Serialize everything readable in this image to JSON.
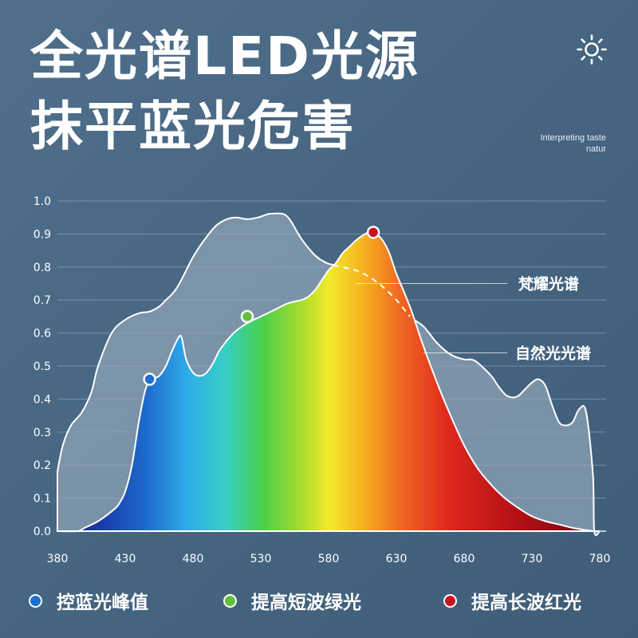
{
  "header": {
    "title_line1": "全光谱LED光源",
    "title_line2": "抹平蓝光危害",
    "tagline": "Interpreting taste natur"
  },
  "icons": {
    "top_right": "sun-icon"
  },
  "colors": {
    "background": "#4a6a86",
    "natural_fill": "#8ea3b6",
    "blue_dot": "#1d6fd1",
    "green_dot": "#62bf3a",
    "red_dot": "#c8141c"
  },
  "legend": {
    "items": [
      {
        "label": "控蓝光峰值",
        "color": "#1d6fd1"
      },
      {
        "label": "提高短波绿光",
        "color": "#62bf3a"
      },
      {
        "label": "提高长波红光",
        "color": "#c8141c"
      }
    ]
  },
  "chart_data": {
    "type": "area",
    "xlim": [
      380,
      780
    ],
    "ylim": [
      0,
      1.0
    ],
    "x_ticks": [
      "380",
      "430",
      "480",
      "530",
      "580",
      "630",
      "680",
      "730",
      "780"
    ],
    "y_ticks": [
      "0.0",
      "0.1",
      "0.2",
      "0.3",
      "0.4",
      "0.5",
      "0.6",
      "0.7",
      "0.8",
      "0.9",
      "1.0"
    ],
    "grid": true,
    "series": [
      {
        "name": "自然光光谱",
        "x": [
          380,
          384,
          390,
          398,
          405,
          410,
          420,
          430,
          440,
          448,
          455,
          460,
          465,
          470,
          480,
          488,
          497,
          505,
          512,
          520,
          528,
          535,
          540,
          547,
          552,
          560,
          570,
          575,
          580,
          590,
          600,
          610,
          620,
          630,
          640,
          650,
          660,
          670,
          680,
          685,
          690,
          700,
          705,
          710,
          715,
          720,
          725,
          730,
          735,
          740,
          745,
          750,
          755,
          760,
          765,
          770,
          775,
          776,
          780
        ],
        "y": [
          0.18,
          0.26,
          0.32,
          0.36,
          0.42,
          0.5,
          0.6,
          0.64,
          0.66,
          0.665,
          0.68,
          0.7,
          0.72,
          0.75,
          0.83,
          0.88,
          0.925,
          0.945,
          0.95,
          0.945,
          0.95,
          0.96,
          0.962,
          0.96,
          0.94,
          0.885,
          0.835,
          0.82,
          0.81,
          0.8,
          0.79,
          0.77,
          0.74,
          0.7,
          0.65,
          0.62,
          0.57,
          0.535,
          0.52,
          0.52,
          0.51,
          0.47,
          0.44,
          0.415,
          0.405,
          0.41,
          0.43,
          0.45,
          0.46,
          0.44,
          0.38,
          0.33,
          0.32,
          0.33,
          0.37,
          0.36,
          0.17,
          0.0,
          0.0
        ]
      },
      {
        "name": "梵耀光谱",
        "x": [
          380,
          395,
          400,
          410,
          420,
          425,
          430,
          435,
          440,
          445,
          450,
          455,
          460,
          465,
          470,
          472,
          475,
          480,
          485,
          490,
          495,
          500,
          510,
          520,
          530,
          540,
          550,
          560,
          565,
          570,
          575,
          580,
          585,
          590,
          595,
          600,
          605,
          610,
          615,
          620,
          625,
          630,
          640,
          650,
          660,
          670,
          680,
          690,
          700,
          710,
          720,
          730,
          740,
          750,
          760,
          770,
          775
        ],
        "y": [
          0.0,
          0.0,
          0.01,
          0.03,
          0.06,
          0.08,
          0.12,
          0.2,
          0.33,
          0.43,
          0.46,
          0.47,
          0.5,
          0.55,
          0.59,
          0.58,
          0.52,
          0.48,
          0.47,
          0.48,
          0.51,
          0.55,
          0.6,
          0.63,
          0.65,
          0.67,
          0.69,
          0.7,
          0.71,
          0.73,
          0.76,
          0.79,
          0.81,
          0.84,
          0.86,
          0.88,
          0.895,
          0.905,
          0.9,
          0.88,
          0.84,
          0.78,
          0.68,
          0.56,
          0.45,
          0.35,
          0.26,
          0.19,
          0.14,
          0.1,
          0.07,
          0.045,
          0.03,
          0.02,
          0.01,
          0.003,
          0.0
        ]
      }
    ],
    "highlight_points": [
      {
        "x": 448,
        "y": 0.46,
        "color": "#1d6fd1"
      },
      {
        "x": 520,
        "y": 0.65,
        "color": "#62bf3a"
      },
      {
        "x": 613,
        "y": 0.905,
        "color": "#c8141c"
      }
    ],
    "annotations": [
      {
        "text": "梵耀光谱",
        "x": 600,
        "y": 0.75
      },
      {
        "text": "自然光光谱",
        "x": 650,
        "y": 0.54
      }
    ]
  }
}
